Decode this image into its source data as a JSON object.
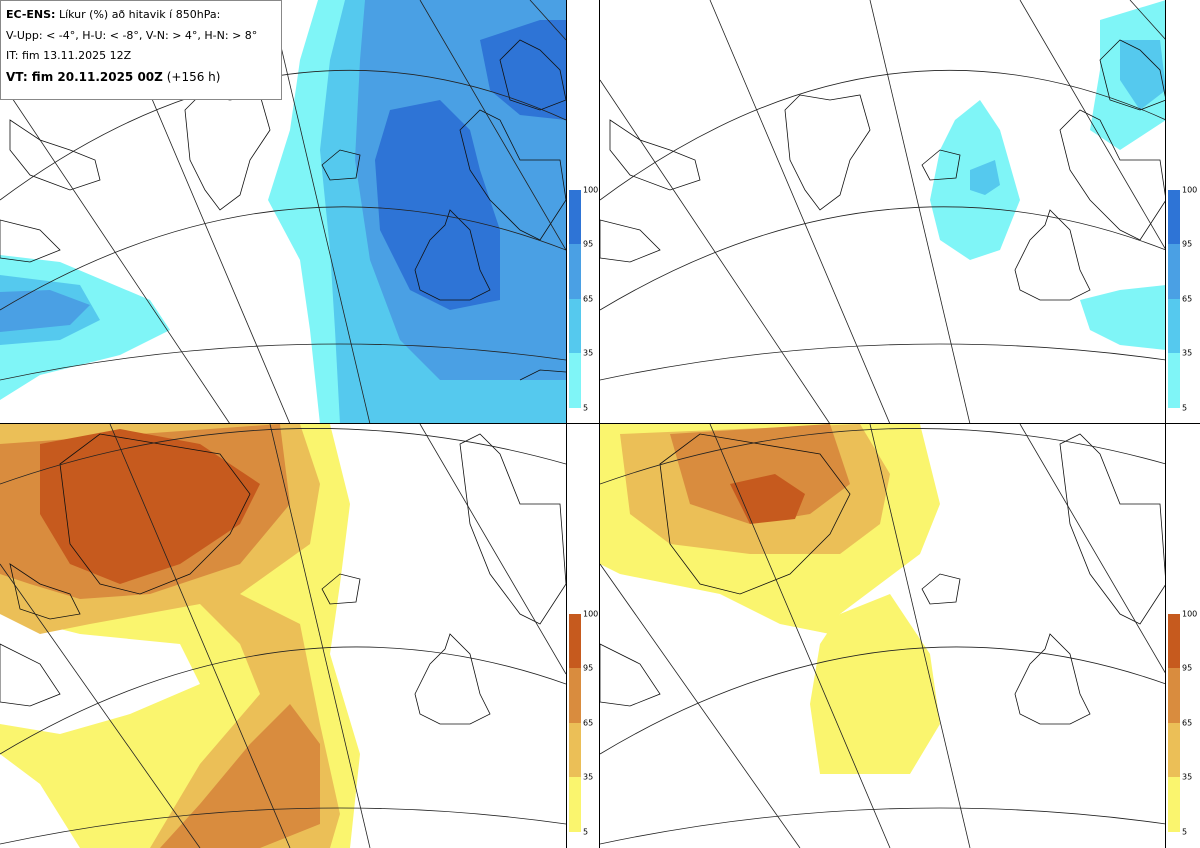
{
  "legend": {
    "model": "EC-ENS:",
    "title": "Líkur (%) að hitavik í 850hPa:",
    "thresholds": "V-Upp: < -4°, H-U: < -8°, V-N: > 4°, H-N: > 8°",
    "init_time": "IT: fim 13.11.2025 12Z",
    "valid_label": "VT: fim 20.11.2025 00Z",
    "lead_time": "(+156 h)"
  },
  "colorbars": {
    "cold": {
      "colors": [
        "#7ff5f7",
        "#55c9ee",
        "#4aa0e4",
        "#2e74d6"
      ],
      "ticks": [
        "100",
        "95",
        "65",
        "35",
        "5"
      ]
    },
    "warm": {
      "colors": [
        "#faf56e",
        "#ebbf57",
        "#d98c3e",
        "#c65a1e"
      ],
      "ticks": [
        "100",
        "95",
        "65",
        "35",
        "5"
      ]
    }
  },
  "panels": [
    {
      "name": "V-Upp",
      "variable": "< -4°"
    },
    {
      "name": "H-U",
      "variable": "< -8°"
    },
    {
      "name": "V-N",
      "variable": "> 4°"
    },
    {
      "name": "H-N",
      "variable": "> 8°"
    }
  ]
}
